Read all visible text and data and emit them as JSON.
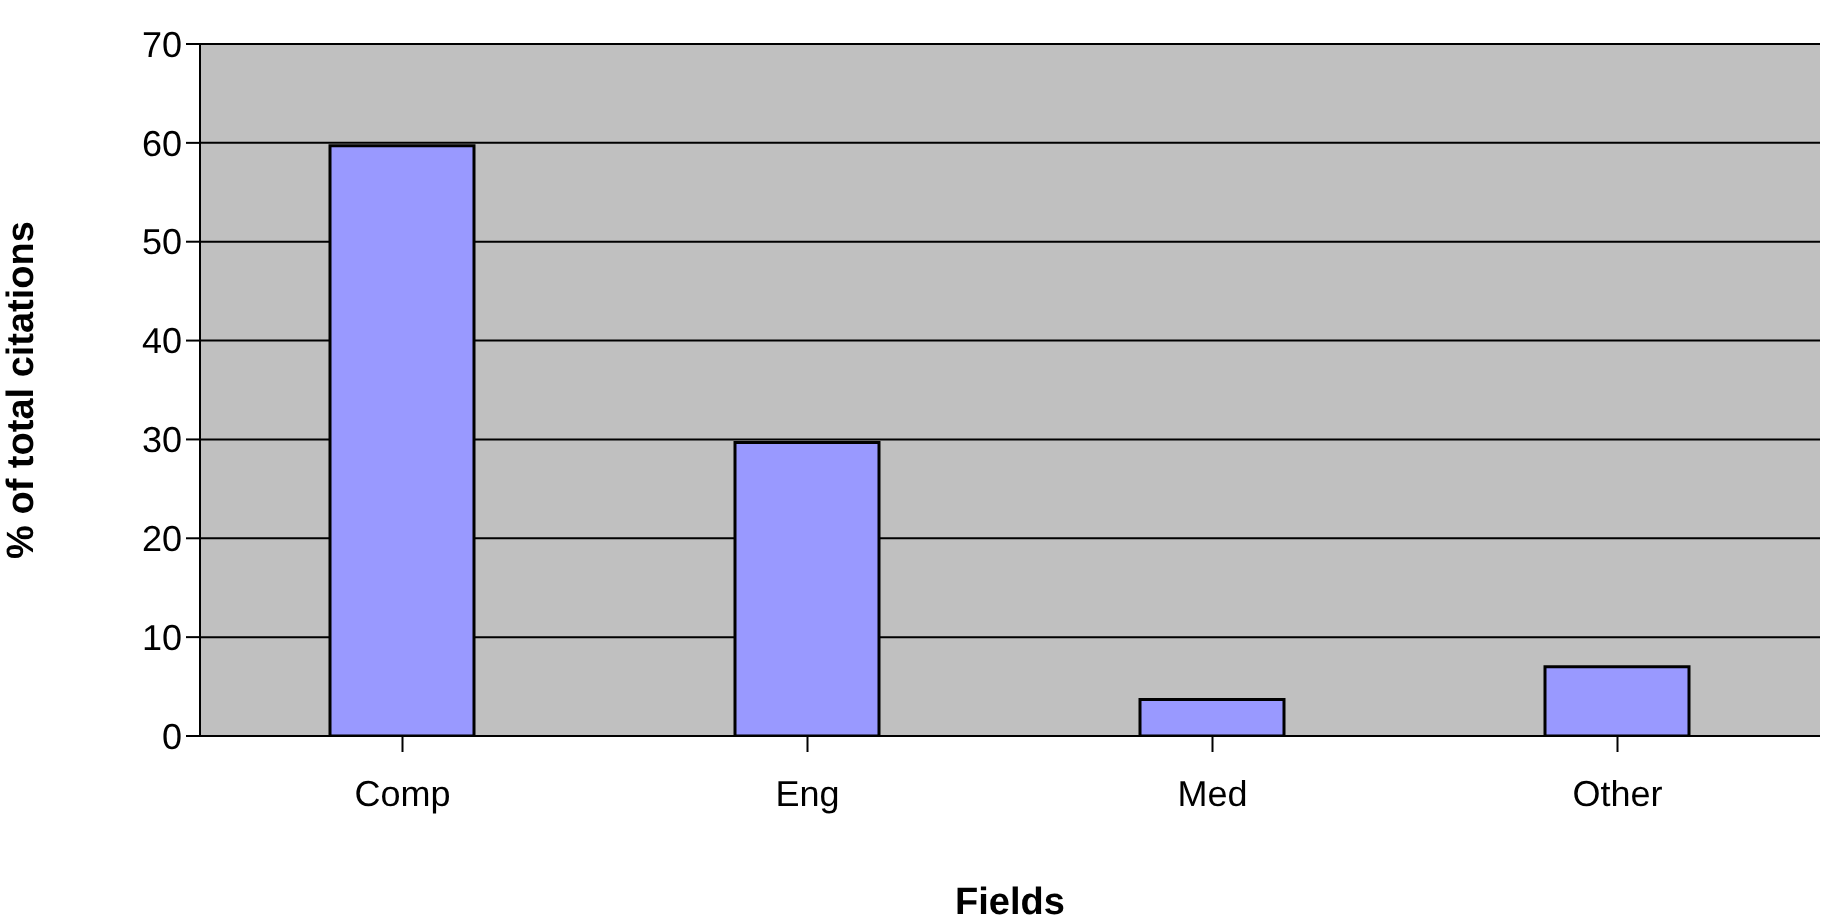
{
  "chart_data": {
    "type": "bar",
    "xlabel": "Fields",
    "ylabel": "% of total citations",
    "categories": [
      "Comp",
      "Eng",
      "Med",
      "Other"
    ],
    "values": [
      59.7,
      29.7,
      3.7,
      7
    ],
    "color": "#9999ff",
    "ylim": [
      0,
      70
    ],
    "yticks": [
      0,
      10,
      20,
      30,
      40,
      50,
      60,
      70
    ],
    "grid": "y",
    "legend": false
  }
}
